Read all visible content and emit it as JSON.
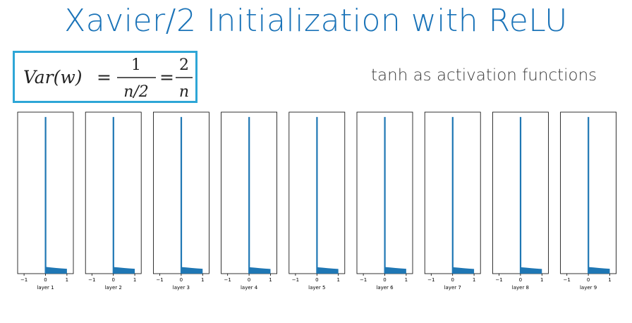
{
  "slide": {
    "title": "Xavier/2 Initialization with ReLU",
    "title_color": "#1a73b8",
    "subtitle": "tanh as activation functions",
    "formula": {
      "lhs": "Var(w)",
      "equals": "=",
      "frac1_num": "1",
      "frac1_den": "n/2",
      "frac2_num": "2",
      "frac2_den": "n",
      "border_color": "#2ea6d6"
    }
  },
  "chart_data": {
    "type": "bar",
    "title": "",
    "xlim": [
      -1.3,
      1.3
    ],
    "xticks": [
      "-1",
      "0",
      "1"
    ],
    "bar_color": "#1f77b4",
    "panels": [
      {
        "label": "layer 1",
        "spike_height": 0.97,
        "tail": [
          [
            0.0,
            0.042
          ],
          [
            0.25,
            0.038
          ],
          [
            0.5,
            0.035
          ],
          [
            0.75,
            0.032
          ],
          [
            1.0,
            0.03
          ]
        ]
      },
      {
        "label": "layer 2",
        "spike_height": 0.97,
        "tail": [
          [
            0.0,
            0.041
          ],
          [
            0.25,
            0.038
          ],
          [
            0.5,
            0.035
          ],
          [
            0.75,
            0.032
          ],
          [
            1.0,
            0.03
          ]
        ]
      },
      {
        "label": "layer 3",
        "spike_height": 0.97,
        "tail": [
          [
            0.0,
            0.041
          ],
          [
            0.25,
            0.038
          ],
          [
            0.5,
            0.035
          ],
          [
            0.75,
            0.032
          ],
          [
            1.0,
            0.03
          ]
        ]
      },
      {
        "label": "layer 4",
        "spike_height": 0.97,
        "tail": [
          [
            0.0,
            0.04
          ],
          [
            0.25,
            0.037
          ],
          [
            0.5,
            0.034
          ],
          [
            0.75,
            0.031
          ],
          [
            1.0,
            0.029
          ]
        ]
      },
      {
        "label": "layer 5",
        "spike_height": 0.97,
        "tail": [
          [
            0.0,
            0.04
          ],
          [
            0.25,
            0.037
          ],
          [
            0.5,
            0.034
          ],
          [
            0.75,
            0.031
          ],
          [
            1.0,
            0.029
          ]
        ]
      },
      {
        "label": "layer 6",
        "spike_height": 0.97,
        "tail": [
          [
            0.0,
            0.041
          ],
          [
            0.25,
            0.038
          ],
          [
            0.5,
            0.035
          ],
          [
            0.75,
            0.032
          ],
          [
            1.0,
            0.03
          ]
        ]
      },
      {
        "label": "layer 7",
        "spike_height": 0.97,
        "tail": [
          [
            0.0,
            0.04
          ],
          [
            0.25,
            0.037
          ],
          [
            0.5,
            0.034
          ],
          [
            0.75,
            0.031
          ],
          [
            1.0,
            0.029
          ]
        ]
      },
      {
        "label": "layer 8",
        "spike_height": 0.97,
        "tail": [
          [
            0.0,
            0.04
          ],
          [
            0.25,
            0.037
          ],
          [
            0.5,
            0.034
          ],
          [
            0.75,
            0.031
          ],
          [
            1.0,
            0.029
          ]
        ]
      },
      {
        "label": "layer 9",
        "spike_height": 0.97,
        "tail": [
          [
            0.0,
            0.041
          ],
          [
            0.25,
            0.038
          ],
          [
            0.5,
            0.035
          ],
          [
            0.75,
            0.032
          ],
          [
            1.0,
            0.03
          ]
        ]
      }
    ]
  }
}
